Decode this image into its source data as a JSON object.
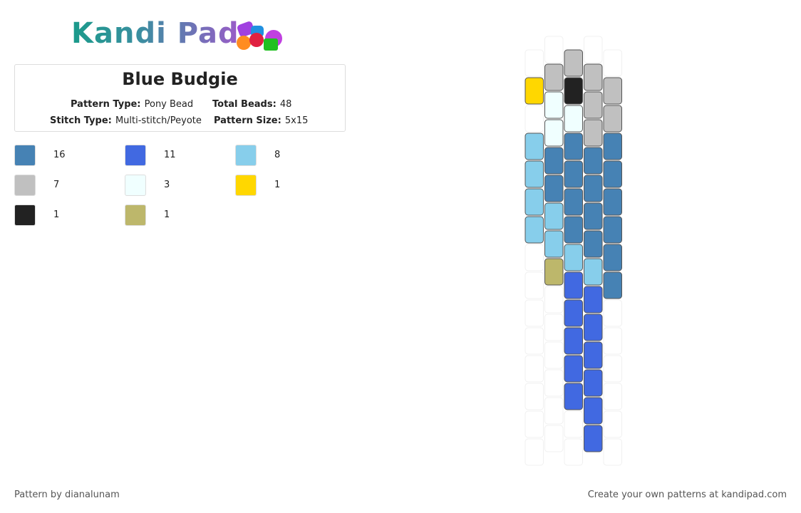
{
  "header": {
    "logo_text": "Kandi Pad"
  },
  "pattern": {
    "title": "Blue Budgie",
    "info": [
      {
        "label": "Pattern Type:",
        "value": "Pony Bead"
      },
      {
        "label": "Total Beads:",
        "value": "48"
      },
      {
        "label": "Stitch Type:",
        "value": "Multi-stitch/Peyote"
      },
      {
        "label": "Pattern Size:",
        "value": "5x15"
      }
    ]
  },
  "palette": [
    {
      "color": "#4682b4",
      "count": 16
    },
    {
      "color": "#4169e1",
      "count": 11
    },
    {
      "color": "#87ceeb",
      "count": 8
    },
    {
      "color": "#c0c0c0",
      "count": 7
    },
    {
      "color": "#f0ffff",
      "count": 3
    },
    {
      "color": "#ffd700",
      "count": 1
    },
    {
      "color": "#222222",
      "count": 1
    },
    {
      "color": "#bdb76b",
      "count": 1
    }
  ],
  "grid": {
    "columns": [
      [
        null,
        "#ffd700",
        null,
        "#87ceeb",
        "#87ceeb",
        "#87ceeb",
        "#87ceeb",
        null,
        null,
        null,
        null,
        null,
        null,
        null,
        null
      ],
      [
        null,
        "#c0c0c0",
        "#f0ffff",
        "#f0ffff",
        "#4682b4",
        "#4682b4",
        "#87ceeb",
        "#87ceeb",
        "#bdb76b",
        null,
        null,
        null,
        null,
        null,
        null
      ],
      [
        "#c0c0c0",
        "#222222",
        "#f0ffff",
        "#4682b4",
        "#4682b4",
        "#4682b4",
        "#4682b4",
        "#87ceeb",
        "#4169e1",
        "#4169e1",
        "#4169e1",
        "#4169e1",
        "#4169e1",
        null,
        null
      ],
      [
        null,
        "#c0c0c0",
        "#c0c0c0",
        "#c0c0c0",
        "#4682b4",
        "#4682b4",
        "#4682b4",
        "#4682b4",
        "#87ceeb",
        "#4169e1",
        "#4169e1",
        "#4169e1",
        "#4169e1",
        "#4169e1",
        "#4169e1"
      ],
      [
        null,
        "#c0c0c0",
        "#c0c0c0",
        "#4682b4",
        "#4682b4",
        "#4682b4",
        "#4682b4",
        "#4682b4",
        "#4682b4",
        null,
        null,
        null,
        null,
        null,
        null
      ]
    ]
  },
  "footer": {
    "credit": "Pattern by dianalunam",
    "promo": "Create your own patterns at kandipad.com"
  }
}
